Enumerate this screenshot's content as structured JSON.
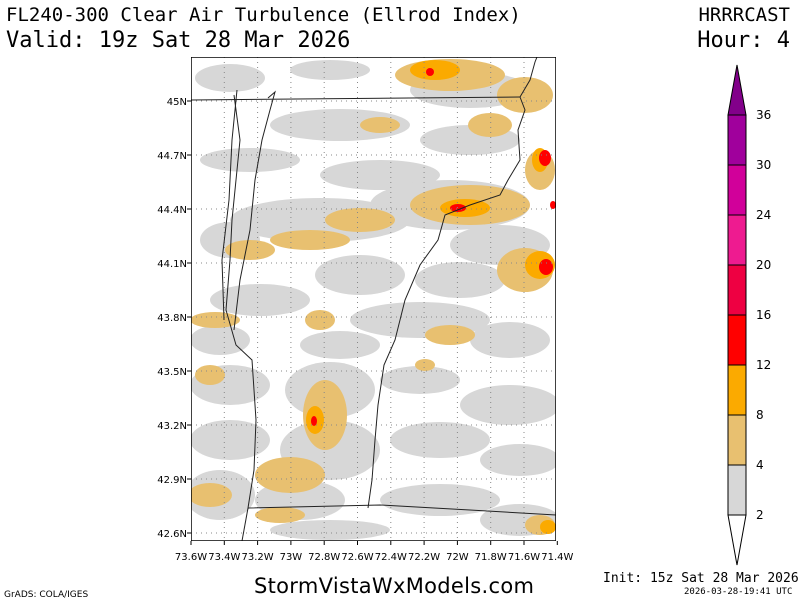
{
  "header": {
    "title": "FL240-300 Clear Air Turbulence (Ellrod Index)",
    "valid": "Valid: 19z Sat 28 Mar 2026",
    "model": "HRRRCAST",
    "hour": "Hour: 4"
  },
  "map": {
    "lat_labels": [
      "45N",
      "44.7N",
      "44.4N",
      "44.1N",
      "43.8N",
      "43.5N",
      "43.2N",
      "42.9N",
      "42.6N"
    ],
    "lon_labels": [
      "73.6W",
      "73.4W",
      "73.2W",
      "73W",
      "72.8W",
      "72.6W",
      "72.4W",
      "72.2W",
      "72W",
      "71.8W",
      "71.6W",
      "71.4W"
    ]
  },
  "colorbar": {
    "levels": [
      "2",
      "4",
      "8",
      "12",
      "16",
      "20",
      "24",
      "30",
      "36"
    ],
    "colors": [
      "#d7d7d7",
      "#e8c070",
      "#fbaa00",
      "#ff0000",
      "#ee0042",
      "#ee1b90",
      "#d1009a",
      "#a0009c",
      "#82008a"
    ]
  },
  "footer": {
    "site": "StormVistaWxModels.com",
    "init": "Init: 15z Sat 28 Mar 2026",
    "stamp": "2026-03-28-19:41 UTC",
    "grads": "GrADS: COLA/IGES"
  }
}
